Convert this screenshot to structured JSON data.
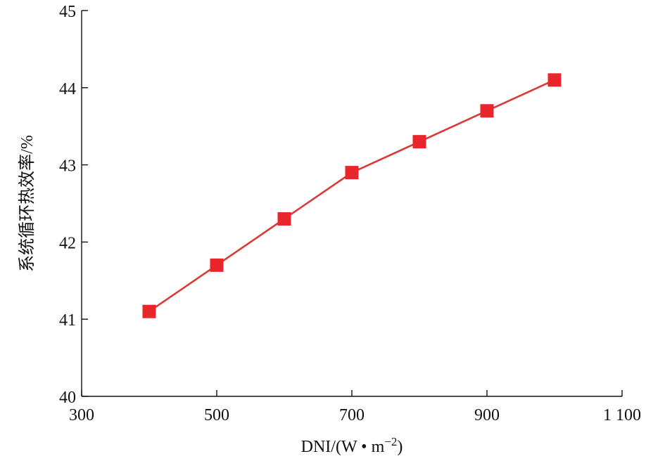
{
  "chart_data": {
    "type": "line",
    "title": "",
    "xlabel": "DNI/(W • m",
    "xlabel_sup": "−2",
    "xlabel_close": ")",
    "ylabel": "系统循环热效率/%",
    "xlim": [
      300,
      1100
    ],
    "ylim": [
      40,
      45
    ],
    "x_ticks": [
      300,
      500,
      700,
      900,
      1100
    ],
    "x_tick_labels": [
      "300",
      "500",
      "700",
      "900",
      "1 100"
    ],
    "y_ticks": [
      40,
      41,
      42,
      43,
      44,
      45
    ],
    "y_tick_labels": [
      "40",
      "41",
      "42",
      "43",
      "44",
      "45"
    ],
    "grid": false,
    "legend": "none",
    "series": [
      {
        "x": [
          400,
          500,
          600,
          700,
          800,
          900,
          1000
        ],
        "values": [
          41.1,
          41.7,
          42.3,
          42.9,
          43.3,
          43.7,
          44.1
        ],
        "color": "#e8262b",
        "line_color": "#d93a36",
        "marker": "square"
      }
    ]
  }
}
